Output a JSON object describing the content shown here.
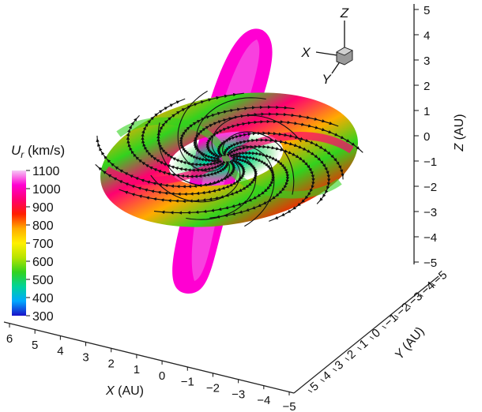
{
  "chart_data": {
    "type": "3d-surface",
    "colorbar": {
      "label_symbol": "U",
      "label_subscript": "r",
      "label_unit": " (km/s)",
      "ticks": [
        1100,
        1000,
        900,
        800,
        700,
        600,
        500,
        400,
        300
      ],
      "range": [
        300,
        1100
      ],
      "colors": [
        "#1a10c8",
        "#00a8ff",
        "#00d39a",
        "#32d21e",
        "#b6e400",
        "#fff000",
        "#ffab00",
        "#ff1f00",
        "#ff0070",
        "#ff00d2",
        "#f5c8f5"
      ]
    },
    "axes": {
      "x": {
        "label_var": "X",
        "label_unit": " (AU)",
        "ticks": [
          "6",
          "5",
          "4",
          "3",
          "2",
          "1",
          "0",
          "−1",
          "−2",
          "−3",
          "−4",
          "−5"
        ]
      },
      "y": {
        "label_var": "Y",
        "label_unit": " (AU)",
        "ticks": [
          "5",
          "4",
          "3",
          "2",
          "1",
          "0",
          "−1",
          "−2",
          "−3",
          "−4",
          "−5"
        ]
      },
      "z": {
        "label_var": "Z",
        "label_unit": " (AU)",
        "ticks": [
          "5",
          "4",
          "3",
          "2",
          "1",
          "0",
          "−1",
          "−2",
          "−3",
          "−4",
          "−5"
        ]
      }
    },
    "orientation_triad": {
      "labels": [
        "X",
        "Y",
        "Z"
      ]
    }
  }
}
